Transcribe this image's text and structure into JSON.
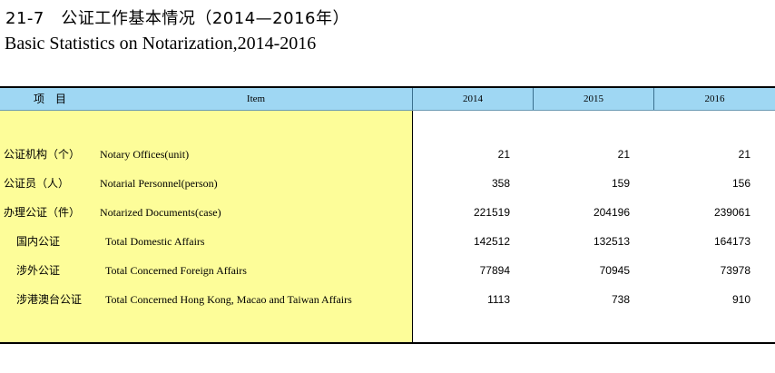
{
  "title_cn": "21-7　公证工作基本情况（2014—2016年）",
  "title_en": "Basic Statistics on Notarization,2014-2016",
  "header": {
    "item_cn": "项　目",
    "item_en": "Item",
    "years": [
      "2014",
      "2015",
      "2016"
    ]
  },
  "rows": [
    {
      "cn": "公证机构（个）",
      "en": "Notary Offices(unit)",
      "values": [
        "21",
        "21",
        "21"
      ]
    },
    {
      "cn": "公证员（人）",
      "en": "Notarial Personnel(person)",
      "values": [
        "358",
        "159",
        "156"
      ]
    },
    {
      "cn": "办理公证（件）",
      "en": "Notarized Documents(case)",
      "values": [
        "221519",
        "204196",
        "239061"
      ]
    },
    {
      "cn": "国内公证",
      "en": "Total Domestic Affairs",
      "values": [
        "142512",
        "132513",
        "164173"
      ]
    },
    {
      "cn": "涉外公证",
      "en": "Total Concerned Foreign Affairs",
      "values": [
        "77894",
        "70945",
        "73978"
      ]
    },
    {
      "cn": "涉港澳台公证",
      "en": "Total Concerned Hong Kong, Macao and Taiwan Affairs",
      "values": [
        "1113",
        "738",
        "910"
      ]
    }
  ]
}
